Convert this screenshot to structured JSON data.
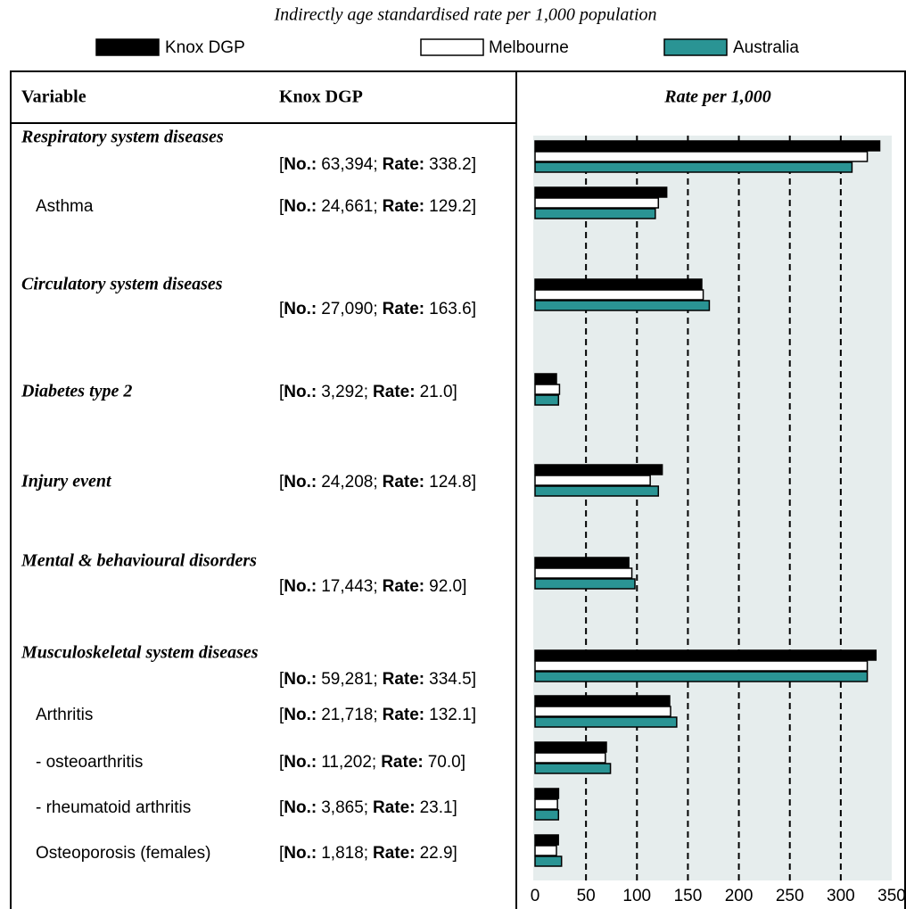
{
  "chart_data": {
    "type": "bar",
    "orientation": "horizontal",
    "title": "Indirectly age standardised rate per 1,000 population",
    "categories": [
      "Respiratory system diseases",
      "Asthma",
      "Circulatory system diseases",
      "Diabetes type 2",
      "Injury event",
      "Mental & behavioural disorders",
      "Musculoskeletal system diseases",
      "Arthritis",
      "- osteoarthritis",
      "- rheumatoid arthritis",
      "Osteoporosis (females)"
    ],
    "series": [
      {
        "name": "Knox DGP",
        "color": "#000000",
        "values": [
          338.2,
          129.2,
          163.6,
          21.0,
          124.8,
          92.0,
          334.5,
          132.1,
          70.0,
          23.1,
          22.9
        ],
        "value_labels": [
          "338.2",
          "129.2",
          "163.6",
          "21.0",
          "124.8",
          "92.0",
          "334.5",
          "132.1",
          "70.0",
          "23.1",
          "22.9"
        ]
      },
      {
        "name": "Melbourne",
        "color": "#ffffff",
        "values": [
          326,
          121,
          165,
          24,
          113,
          95,
          326,
          133,
          69,
          22,
          21
        ]
      },
      {
        "name": "Australia",
        "color": "#2a9494",
        "values": [
          311,
          118,
          171,
          23,
          121,
          98,
          326,
          139,
          74,
          23,
          26
        ]
      }
    ],
    "xlim": [
      0,
      350
    ],
    "xticks": [
      0,
      50,
      100,
      150,
      200,
      250,
      300,
      350
    ],
    "grid": true
  },
  "table": {
    "headers": [
      "Variable",
      "Knox DGP"
    ],
    "chart_header": "Rate per 1,000",
    "open": "[",
    "count_label": "No.:",
    "sep": ";",
    "rate_label": "Rate:",
    "close": "]",
    "rows": [
      {
        "level": 1,
        "count": "63,394"
      },
      {
        "level": 2,
        "count": "24,661"
      },
      {
        "level": 1,
        "count": "27,090"
      },
      {
        "level": 1,
        "count": "3,292"
      },
      {
        "level": 1,
        "count": "24,208"
      },
      {
        "level": 1,
        "count": "17,443"
      },
      {
        "level": 1,
        "count": "59,281"
      },
      {
        "level": 2,
        "count": "21,718"
      },
      {
        "level": 2,
        "count": "11,202"
      },
      {
        "level": 2,
        "count": "3,865"
      },
      {
        "level": 2,
        "count": "1,818"
      }
    ]
  }
}
